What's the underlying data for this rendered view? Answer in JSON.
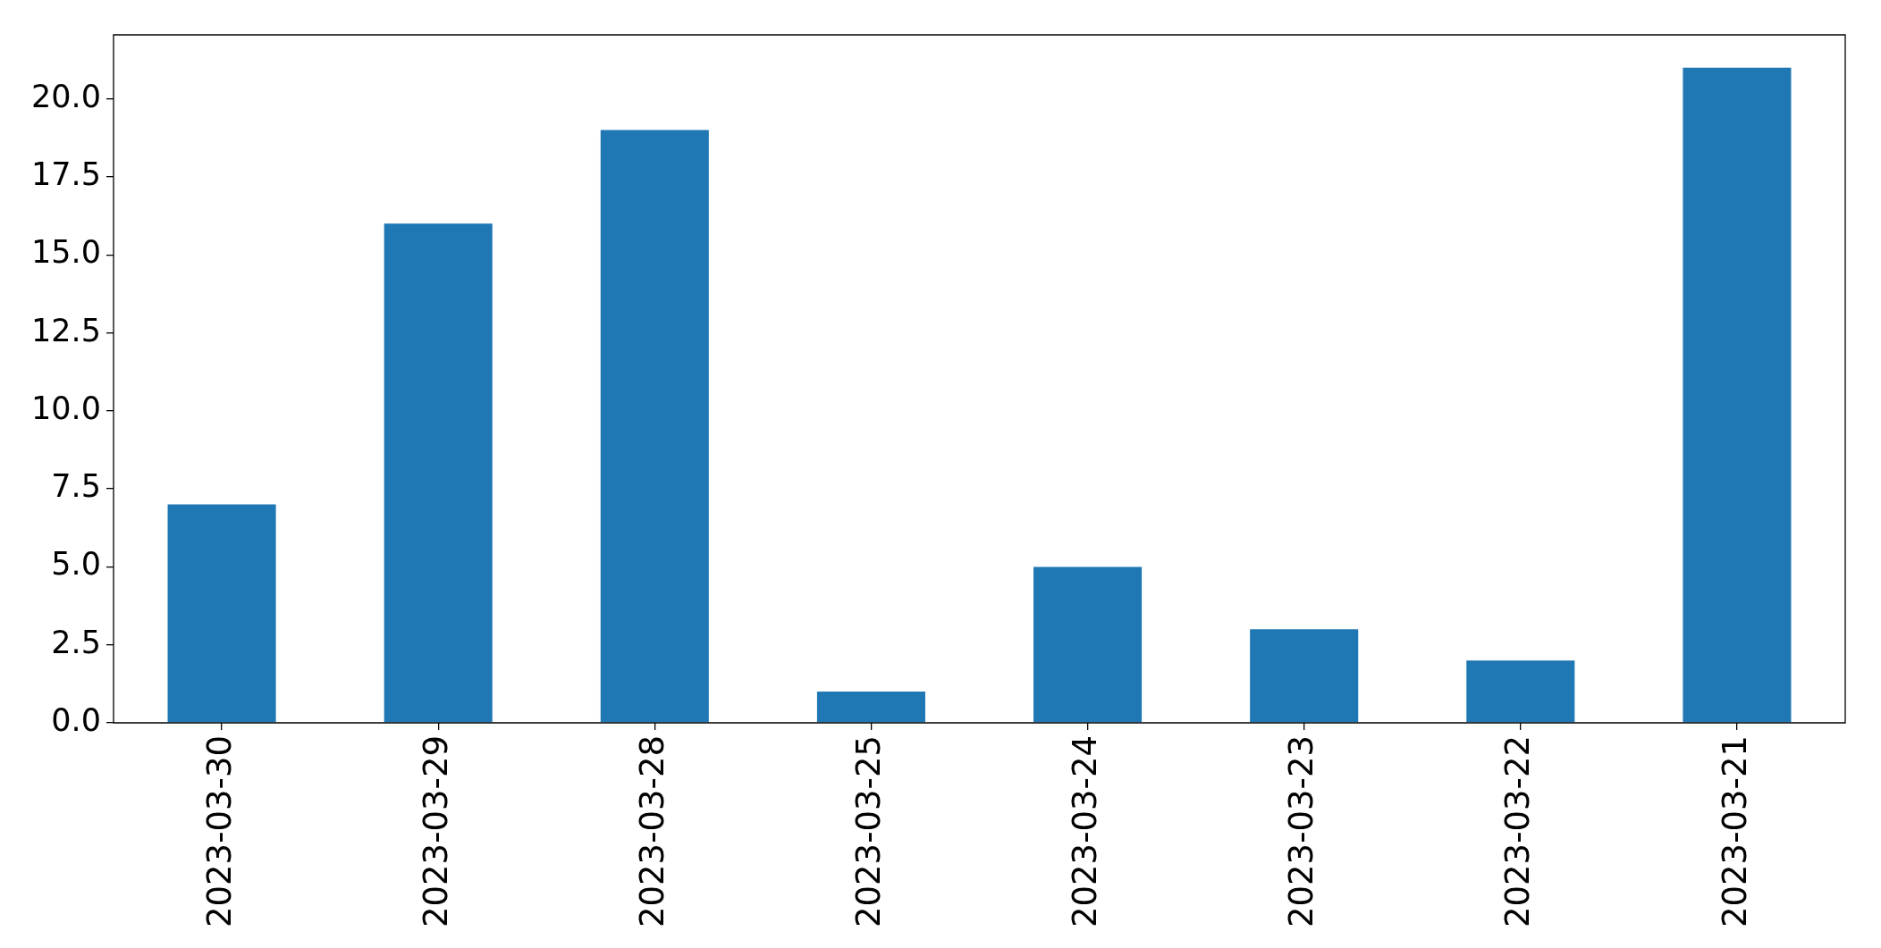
{
  "chart_data": {
    "type": "bar",
    "categories": [
      "2023-03-30",
      "2023-03-29",
      "2023-03-28",
      "2023-03-25",
      "2023-03-24",
      "2023-03-23",
      "2023-03-22",
      "2023-03-21"
    ],
    "values": [
      7,
      16,
      19,
      1,
      5,
      3,
      2,
      21
    ],
    "color": "#1f77b4",
    "ylim": [
      0,
      22.05
    ],
    "yticks": [
      {
        "value": 0,
        "label": "0.0"
      },
      {
        "value": 2.5,
        "label": "2.5"
      },
      {
        "value": 5,
        "label": "5.0"
      },
      {
        "value": 7.5,
        "label": "7.5"
      },
      {
        "value": 10,
        "label": "10.0"
      },
      {
        "value": 12.5,
        "label": "12.5"
      },
      {
        "value": 15,
        "label": "15.0"
      },
      {
        "value": 17.5,
        "label": "17.5"
      },
      {
        "value": 20,
        "label": "20.0"
      }
    ],
    "grid": false,
    "legend": false
  }
}
